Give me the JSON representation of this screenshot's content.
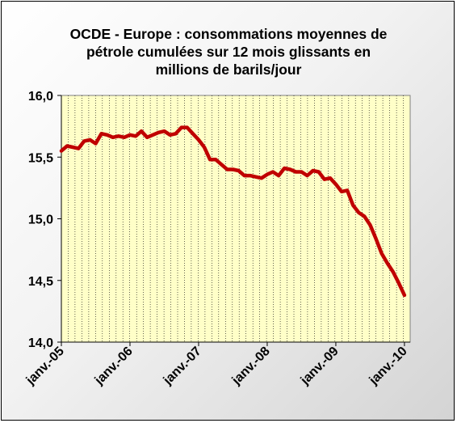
{
  "chart_data": {
    "type": "line",
    "title": "OCDE - Europe : consommations moyennes de pétrole cumulées sur 12 mois glissants en millions de barils/jour",
    "title_lines": [
      "OCDE - Europe : consommations moyennes de",
      "pétrole cumulées sur 12 mois glissants en",
      "millions de barils/jour"
    ],
    "xlabel": "",
    "ylabel": "",
    "ylim": [
      14.0,
      16.0
    ],
    "yticks": [
      14.0,
      14.5,
      15.0,
      15.5,
      16.0
    ],
    "ytick_labels": [
      "14,0",
      "14,5",
      "15,0",
      "15,5",
      "16,0"
    ],
    "x_start": "2005-01",
    "x_end": "2010-02",
    "xticks": [
      "2005-01",
      "2006-01",
      "2007-01",
      "2008-01",
      "2009-01",
      "2010-01"
    ],
    "xtick_labels": [
      "janv.-05",
      "janv.-06",
      "janv.-07",
      "janv.-08",
      "janv.-09",
      "janv.-10"
    ],
    "grid": "vertical-dotted",
    "legend": "none",
    "colors": {
      "line": "#c00000",
      "plot_background": "#ffffc8",
      "grid": "#000000"
    },
    "series": [
      {
        "x": [
          "2005-01",
          "2005-02",
          "2005-03",
          "2005-04",
          "2005-05",
          "2005-06",
          "2005-07",
          "2005-08",
          "2005-09",
          "2005-10",
          "2005-11",
          "2005-12",
          "2006-01",
          "2006-02",
          "2006-03",
          "2006-04",
          "2006-05",
          "2006-06",
          "2006-07",
          "2006-08",
          "2006-09",
          "2006-10",
          "2006-11",
          "2006-12",
          "2007-01",
          "2007-02",
          "2007-03",
          "2007-04",
          "2007-05",
          "2007-06",
          "2007-07",
          "2007-08",
          "2007-09",
          "2007-10",
          "2007-11",
          "2007-12",
          "2008-01",
          "2008-02",
          "2008-03",
          "2008-04",
          "2008-05",
          "2008-06",
          "2008-07",
          "2008-08",
          "2008-09",
          "2008-10",
          "2008-11",
          "2008-12",
          "2009-01",
          "2009-02",
          "2009-03",
          "2009-04",
          "2009-05",
          "2009-06",
          "2009-07",
          "2009-08",
          "2009-09",
          "2009-10",
          "2009-11",
          "2009-12",
          "2010-01"
        ],
        "values": [
          15.55,
          15.59,
          15.58,
          15.57,
          15.63,
          15.64,
          15.61,
          15.69,
          15.68,
          15.66,
          15.67,
          15.66,
          15.68,
          15.67,
          15.71,
          15.66,
          15.68,
          15.7,
          15.71,
          15.68,
          15.69,
          15.74,
          15.74,
          15.69,
          15.64,
          15.58,
          15.48,
          15.48,
          15.44,
          15.4,
          15.4,
          15.39,
          15.35,
          15.35,
          15.34,
          15.33,
          15.36,
          15.38,
          15.35,
          15.41,
          15.4,
          15.38,
          15.38,
          15.35,
          15.39,
          15.38,
          15.32,
          15.33,
          15.28,
          15.22,
          15.23,
          15.11,
          15.05,
          15.02,
          14.95,
          14.84,
          14.72,
          14.64,
          14.57,
          14.48,
          14.38
        ]
      }
    ]
  }
}
